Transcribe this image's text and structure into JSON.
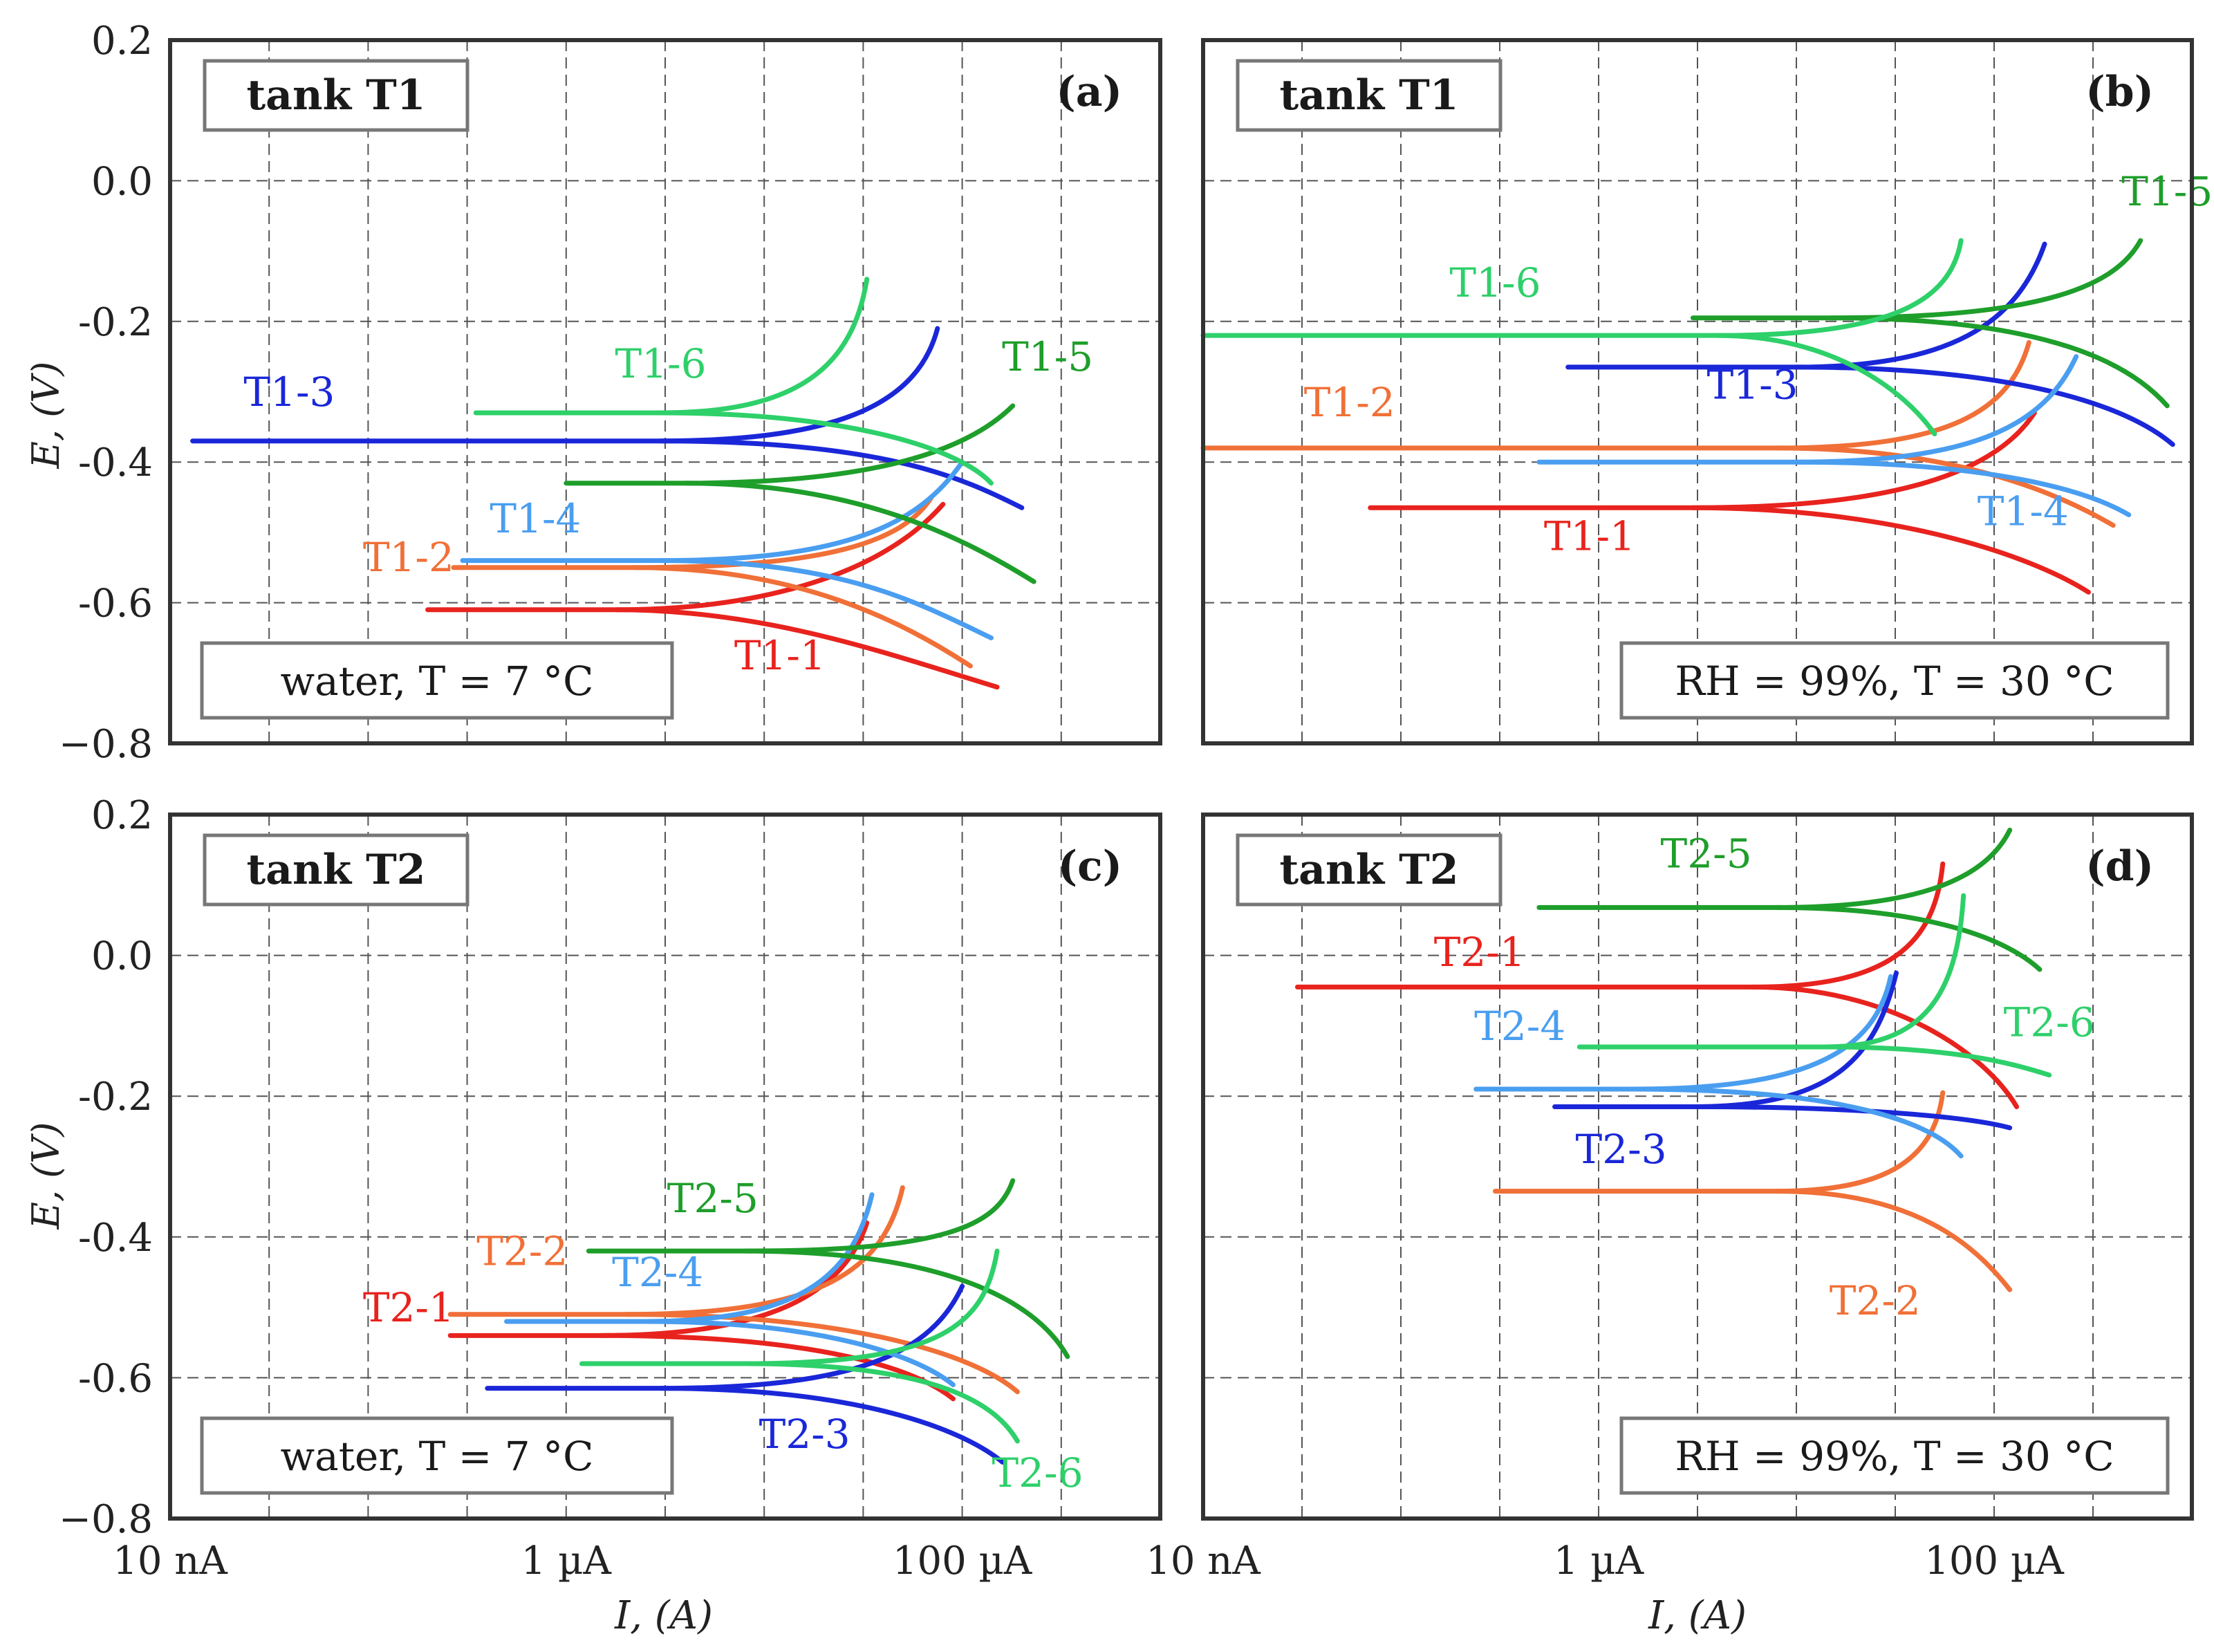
{
  "figure": {
    "ylabel": "E, (V)",
    "xlabel": "I, (A)",
    "colors": {
      "c1": "#e8231e",
      "c2": "#f07038",
      "c3": "#1a27d8",
      "c4": "#4a9ef0",
      "c5": "#1e9e2a",
      "c6": "#2ed06a",
      "frame": "#333333",
      "grid": "#555555"
    }
  },
  "chart_data": [
    {
      "panel": "a",
      "type": "line",
      "tag": "(a)",
      "tank": "tank T1",
      "condition": "water,  T = 7 °C",
      "x_scale": "log",
      "xlim_A": [
        1e-08,
        0.001
      ],
      "ylim_V": [
        -0.8,
        0.2
      ],
      "x_ticks": [
        {
          "v": 1e-08,
          "label": "10 nA"
        },
        {
          "v": 1e-06,
          "label": "1 µA"
        },
        {
          "v": 0.0001,
          "label": "100 µA"
        }
      ],
      "y_ticks": [
        {
          "v": 0.2,
          "label": "0.2"
        },
        {
          "v": 0.0,
          "label": "0.0"
        },
        {
          "v": -0.2,
          "label": "-0.2"
        },
        {
          "v": -0.4,
          "label": "-0.4"
        },
        {
          "v": -0.6,
          "label": "-0.6"
        },
        {
          "v": -0.8,
          "label": "−0.8"
        }
      ],
      "series": [
        {
          "name": "T1-1",
          "color": "c1",
          "ecorr": -0.61,
          "xmin": 2e-07,
          "anodic": [
            1.8e-06,
            1e-05,
            4e-05,
            8e-05
          ],
          "anodic_end_E": -0.46,
          "cathodic": [
            1.8e-06,
            1e-05,
            4e-05,
            0.00015
          ],
          "cathodic_end_E": -0.72,
          "label_pos": [
            1.2e-05,
            -0.695
          ]
        },
        {
          "name": "T1-2",
          "color": "c2",
          "ecorr": -0.55,
          "xmin": 2.7e-07,
          "anodic": [
            2.2e-06,
            2e-05,
            5e-05,
            7e-05
          ],
          "anodic_end_E": -0.45,
          "cathodic": [
            2.2e-06,
            1.5e-05,
            5e-05,
            0.00011
          ],
          "cathodic_end_E": -0.69,
          "label_pos": [
            1.6e-07,
            -0.555
          ]
        },
        {
          "name": "T1-3",
          "color": "c3",
          "ecorr": -0.37,
          "xmin": 1.3e-08,
          "anodic": [
            3e-06,
            2.5e-05,
            6e-05,
            7.5e-05
          ],
          "anodic_end_E": -0.21,
          "cathodic": [
            3e-06,
            4e-05,
            0.0001,
            0.0002
          ],
          "cathodic_end_E": -0.465,
          "label_pos": [
            4e-08,
            -0.32
          ]
        },
        {
          "name": "T1-4",
          "color": "c4",
          "ecorr": -0.54,
          "xmin": 3e-07,
          "anodic": [
            3e-06,
            2.5e-05,
            6e-05,
            0.0001
          ],
          "anodic_end_E": -0.4,
          "cathodic": [
            3e-06,
            2.5e-05,
            6e-05,
            0.00014
          ],
          "cathodic_end_E": -0.65,
          "label_pos": [
            7e-07,
            -0.5
          ]
        },
        {
          "name": "T1-5",
          "color": "c5",
          "ecorr": -0.43,
          "xmin": 1e-06,
          "anodic": [
            4e-06,
            3e-05,
            0.0001,
            0.00018
          ],
          "anodic_end_E": -0.32,
          "cathodic": [
            4e-06,
            3e-05,
            0.0001,
            0.00023
          ],
          "cathodic_end_E": -0.57,
          "label_pos": [
            0.00027,
            -0.27
          ]
        },
        {
          "name": "T1-6",
          "color": "c6",
          "ecorr": -0.33,
          "xmin": 3.5e-07,
          "anodic": [
            3e-06,
            1.5e-05,
            2.8e-05,
            3.3e-05
          ],
          "anodic_end_E": -0.14,
          "cathodic": [
            3e-06,
            3e-05,
            0.0001,
            0.00014
          ],
          "cathodic_end_E": -0.43,
          "label_pos": [
            3e-06,
            -0.28
          ]
        }
      ]
    },
    {
      "panel": "b",
      "type": "line",
      "tag": "(b)",
      "tank": "tank T1",
      "condition": "RH = 99%,  T = 30 °C",
      "x_scale": "log",
      "xlim_A": [
        1e-08,
        0.001
      ],
      "ylim_V": [
        -0.8,
        0.2
      ],
      "x_ticks": [
        {
          "v": 1e-08,
          "label": "10 nA"
        },
        {
          "v": 1e-06,
          "label": "1 µA"
        },
        {
          "v": 0.0001,
          "label": "100 µA"
        }
      ],
      "y_ticks": [
        {
          "v": 0.2,
          "label": "0.2"
        },
        {
          "v": 0.0,
          "label": "0.0"
        },
        {
          "v": -0.2,
          "label": "-0.2"
        },
        {
          "v": -0.4,
          "label": "-0.4"
        },
        {
          "v": -0.6,
          "label": "-0.6"
        },
        {
          "v": -0.8,
          "label": "−0.8"
        }
      ],
      "series": [
        {
          "name": "T1-1",
          "color": "c1",
          "ecorr": -0.465,
          "xmin": 7e-08,
          "anodic": [
            3e-06,
            3e-05,
            0.0001,
            0.00016
          ],
          "anodic_end_E": -0.33,
          "cathodic": [
            3e-06,
            3e-05,
            0.00015,
            0.0003
          ],
          "cathodic_end_E": -0.585,
          "label_pos": [
            9e-07,
            -0.525
          ]
        },
        {
          "name": "T1-2",
          "color": "c2",
          "ecorr": -0.38,
          "xmin": 1e-08,
          "anodic": [
            8e-06,
            6e-05,
            0.00012,
            0.00015
          ],
          "anodic_end_E": -0.23,
          "cathodic": [
            8e-06,
            6e-05,
            0.0002,
            0.0004
          ],
          "cathodic_end_E": -0.49,
          "label_pos": [
            5.5e-08,
            -0.335
          ]
        },
        {
          "name": "T1-3",
          "color": "c3",
          "ecorr": -0.265,
          "xmin": 7e-07,
          "anodic": [
            1e-05,
            6e-05,
            0.00013,
            0.00018
          ],
          "anodic_end_E": -0.09,
          "cathodic": [
            1e-05,
            0.00015,
            0.0005,
            0.0008
          ],
          "cathodic_end_E": -0.375,
          "label_pos": [
            6e-06,
            -0.31
          ]
        },
        {
          "name": "T1-4",
          "color": "c4",
          "ecorr": -0.4,
          "xmin": 5e-07,
          "anodic": [
            1e-05,
            8e-05,
            0.00018,
            0.00026
          ],
          "anodic_end_E": -0.25,
          "cathodic": [
            1e-05,
            0.0001,
            0.0003,
            0.00048
          ],
          "cathodic_end_E": -0.475,
          "label_pos": [
            0.00014,
            -0.49
          ]
        },
        {
          "name": "T1-5",
          "color": "c5",
          "ecorr": -0.195,
          "xmin": 3e-06,
          "anodic": [
            1.5e-05,
            0.00015,
            0.0004,
            0.00055
          ],
          "anodic_end_E": -0.085,
          "cathodic": [
            1.5e-05,
            0.0002,
            0.0005,
            0.00075
          ],
          "cathodic_end_E": -0.32,
          "label_pos": [
            0.00075,
            -0.035
          ]
        },
        {
          "name": "T1-6",
          "color": "c6",
          "ecorr": -0.22,
          "xmin": 1e-08,
          "anodic": [
            4e-06,
            3e-05,
            6e-05,
            6.8e-05
          ],
          "anodic_end_E": -0.085,
          "cathodic": [
            4e-06,
            1.5e-05,
            3.5e-05,
            5e-05
          ],
          "cathodic_end_E": -0.36,
          "label_pos": [
            3e-07,
            -0.165
          ]
        }
      ]
    },
    {
      "panel": "c",
      "type": "line",
      "tag": "(c)",
      "tank": "tank T2",
      "condition": "water,  T = 7 °C",
      "x_scale": "log",
      "xlim_A": [
        1e-08,
        0.001
      ],
      "ylim_V": [
        -0.8,
        0.2
      ],
      "x_ticks": [
        {
          "v": 1e-08,
          "label": "10 nA"
        },
        {
          "v": 1e-06,
          "label": "1 µA"
        },
        {
          "v": 0.0001,
          "label": "100 µA"
        }
      ],
      "y_ticks": [
        {
          "v": 0.2,
          "label": "0.2"
        },
        {
          "v": 0.0,
          "label": "0.0"
        },
        {
          "v": -0.2,
          "label": "-0.2"
        },
        {
          "v": -0.4,
          "label": "-0.4"
        },
        {
          "v": -0.6,
          "label": "-0.6"
        },
        {
          "v": -0.8,
          "label": "−0.8"
        }
      ],
      "series": [
        {
          "name": "T2-1",
          "color": "c1",
          "ecorr": -0.54,
          "xmin": 2.6e-07,
          "anodic": [
            1.5e-06,
            1e-05,
            2.5e-05,
            3.3e-05
          ],
          "anodic_end_E": -0.38,
          "cathodic": [
            1.5e-06,
            2e-05,
            6e-05,
            9e-05
          ],
          "cathodic_end_E": -0.63,
          "label_pos": [
            1.6e-07,
            -0.52
          ]
        },
        {
          "name": "T2-2",
          "color": "c2",
          "ecorr": -0.51,
          "xmin": 2.6e-07,
          "anodic": [
            2e-06,
            2e-05,
            4e-05,
            5e-05
          ],
          "anodic_end_E": -0.33,
          "cathodic": [
            2e-06,
            3e-05,
            0.00012,
            0.00019
          ],
          "cathodic_end_E": -0.62,
          "label_pos": [
            6e-07,
            -0.44
          ]
        },
        {
          "name": "T2-3",
          "color": "c3",
          "ecorr": -0.615,
          "xmin": 4e-07,
          "anodic": [
            3e-06,
            3e-05,
            7e-05,
            0.0001
          ],
          "anodic_end_E": -0.47,
          "cathodic": [
            3e-06,
            3e-05,
            0.0001,
            0.00016
          ],
          "cathodic_end_E": -0.72,
          "label_pos": [
            1.6e-05,
            -0.7
          ]
        },
        {
          "name": "T2-4",
          "color": "c4",
          "ecorr": -0.52,
          "xmin": 5e-07,
          "anodic": [
            2.5e-06,
            1.5e-05,
            2.8e-05,
            3.5e-05
          ],
          "anodic_end_E": -0.34,
          "cathodic": [
            2.5e-06,
            2e-05,
            6e-05,
            9e-05
          ],
          "cathodic_end_E": -0.61,
          "label_pos": [
            2.9e-06,
            -0.47
          ]
        },
        {
          "name": "T2-5",
          "color": "c5",
          "ecorr": -0.42,
          "xmin": 1.3e-06,
          "anodic": [
            8e-06,
            8e-05,
            0.00015,
            0.00018
          ],
          "anodic_end_E": -0.32,
          "cathodic": [
            8e-06,
            0.0001,
            0.00025,
            0.00034
          ],
          "cathodic_end_E": -0.57,
          "label_pos": [
            5.5e-06,
            -0.365
          ]
        },
        {
          "name": "T2-6",
          "color": "c6",
          "ecorr": -0.58,
          "xmin": 1.2e-06,
          "anodic": [
            8e-06,
            8e-05,
            0.00013,
            0.00015
          ],
          "anodic_end_E": -0.42,
          "cathodic": [
            8e-06,
            8e-05,
            0.00015,
            0.00019
          ],
          "cathodic_end_E": -0.69,
          "label_pos": [
            0.00024,
            -0.755
          ]
        }
      ]
    },
    {
      "panel": "d",
      "type": "line",
      "tag": "(d)",
      "tank": "tank T2",
      "condition": "RH = 99%,  T = 30 °C",
      "x_scale": "log",
      "xlim_A": [
        1e-08,
        0.001
      ],
      "ylim_V": [
        -0.8,
        0.2
      ],
      "x_ticks": [
        {
          "v": 1e-08,
          "label": "10 nA"
        },
        {
          "v": 1e-06,
          "label": "1 µA"
        },
        {
          "v": 0.0001,
          "label": "100 µA"
        }
      ],
      "y_ticks": [
        {
          "v": 0.2,
          "label": "0.2"
        },
        {
          "v": 0.0,
          "label": "0.0"
        },
        {
          "v": -0.2,
          "label": "-0.2"
        },
        {
          "v": -0.4,
          "label": "-0.4"
        },
        {
          "v": -0.6,
          "label": "-0.6"
        },
        {
          "v": -0.8,
          "label": "−0.8"
        }
      ],
      "series": [
        {
          "name": "T2-1",
          "color": "c1",
          "ecorr": -0.045,
          "xmin": 3e-08,
          "anodic": [
            6e-06,
            3e-05,
            5e-05,
            5.5e-05
          ],
          "anodic_end_E": 0.13,
          "cathodic": [
            6e-06,
            3e-05,
            9e-05,
            0.00013
          ],
          "cathodic_end_E": -0.215,
          "label_pos": [
            2.5e-07,
            -0.015
          ]
        },
        {
          "name": "T2-2",
          "color": "c2",
          "ecorr": -0.335,
          "xmin": 3e-07,
          "anodic": [
            8e-06,
            3e-05,
            5e-05,
            5.5e-05
          ],
          "anodic_end_E": -0.195,
          "cathodic": [
            8e-06,
            4e-05,
            8e-05,
            0.00012
          ],
          "cathodic_end_E": -0.475,
          "label_pos": [
            2.5e-05,
            -0.51
          ]
        },
        {
          "name": "T2-3",
          "color": "c3",
          "ecorr": -0.215,
          "xmin": 6e-07,
          "anodic": [
            3e-06,
            1.5e-05,
            2.5e-05,
            3.2e-05
          ],
          "anodic_end_E": -0.025,
          "cathodic": [
            3e-06,
            2.5e-05,
            8e-05,
            0.00012
          ],
          "cathodic_end_E": -0.245,
          "label_pos": [
            1.3e-06,
            -0.295
          ]
        },
        {
          "name": "T2-4",
          "color": "c4",
          "ecorr": -0.19,
          "xmin": 2.4e-07,
          "anodic": [
            1.5e-06,
            1.2e-05,
            2.5e-05,
            3e-05
          ],
          "anodic_end_E": -0.03,
          "cathodic": [
            1.5e-06,
            2e-05,
            5e-05,
            6.8e-05
          ],
          "cathodic_end_E": -0.285,
          "label_pos": [
            4e-07,
            -0.12
          ]
        },
        {
          "name": "T2-5",
          "color": "c5",
          "ecorr": 0.068,
          "xmin": 5e-07,
          "anodic": [
            8e-06,
            4e-05,
            9e-05,
            0.00012
          ],
          "anodic_end_E": 0.178,
          "cathodic": [
            8e-06,
            5e-05,
            0.00012,
            0.00017
          ],
          "cathodic_end_E": -0.02,
          "label_pos": [
            3.5e-06,
            0.125
          ]
        },
        {
          "name": "T2-6",
          "color": "c6",
          "ecorr": -0.13,
          "xmin": 8e-07,
          "anodic": [
            1.4e-05,
            4.5e-05,
            6.5e-05,
            7e-05
          ],
          "anodic_end_E": 0.085,
          "cathodic": [
            1.4e-05,
            6e-05,
            0.00012,
            0.00019
          ],
          "cathodic_end_E": -0.17,
          "label_pos": [
            0.00019,
            -0.115
          ]
        }
      ]
    }
  ]
}
